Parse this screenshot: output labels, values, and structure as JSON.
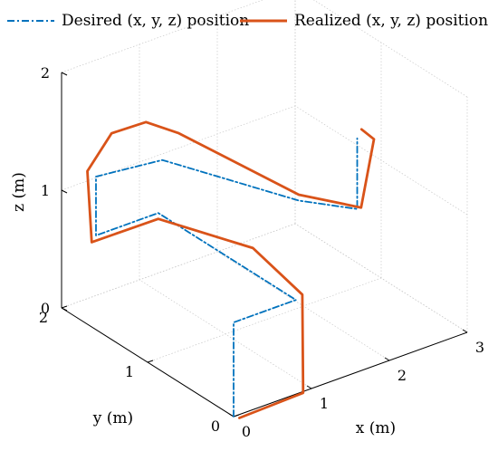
{
  "chart_data": {
    "type": "line",
    "projection": "3d",
    "title": "",
    "xlabel": "x (m)",
    "ylabel": "y (m)",
    "zlabel": "z (m)",
    "xlim": [
      0,
      3
    ],
    "ylim": [
      0,
      2
    ],
    "zlim": [
      0,
      2
    ],
    "xticks": [
      "0",
      "1",
      "2",
      "3"
    ],
    "yticks": [
      "0",
      "1",
      "2"
    ],
    "zticks": [
      "0",
      "1",
      "2"
    ],
    "grid": true,
    "legend_position": "top",
    "series": [
      {
        "name": "Desired (x, y, z) position",
        "color": "#0072BD",
        "style": "dash-dot",
        "points": [
          [
            0,
            0,
            0
          ],
          [
            0,
            0,
            0.8
          ],
          [
            0.8,
            0,
            0.8
          ],
          [
            0.8,
            1.6,
            0.8
          ],
          [
            0,
            1.6,
            0.8
          ],
          [
            0,
            1.6,
            1.3
          ],
          [
            0.3,
            1.1,
            1.6
          ],
          [
            1.5,
            0.6,
            1.2
          ],
          [
            2.25,
            0.6,
            0.95
          ],
          [
            2.25,
            0.6,
            1.55
          ]
        ]
      },
      {
        "name": "Realized (x, y, z) position",
        "color": "#D95319",
        "style": "solid",
        "points": [
          [
            0.03,
            -0.04,
            0
          ],
          [
            0.86,
            -0.03,
            0.01
          ],
          [
            0.86,
            -0.02,
            0.84
          ],
          [
            0.8,
            0.5,
            1.01
          ],
          [
            0.8,
            1.6,
            0.75
          ],
          [
            0.0,
            1.65,
            0.72
          ],
          [
            0,
            1.7,
            1.3
          ],
          [
            0.2,
            1.6,
            1.62
          ],
          [
            0.2,
            1.2,
            1.9
          ],
          [
            0.4,
            1.0,
            1.85
          ],
          [
            1.5,
            0.6,
            1.25
          ],
          [
            2.3,
            0.6,
            0.95
          ],
          [
            2.3,
            0.45,
            1.6
          ],
          [
            2.25,
            0.55,
            1.65
          ]
        ]
      }
    ]
  }
}
